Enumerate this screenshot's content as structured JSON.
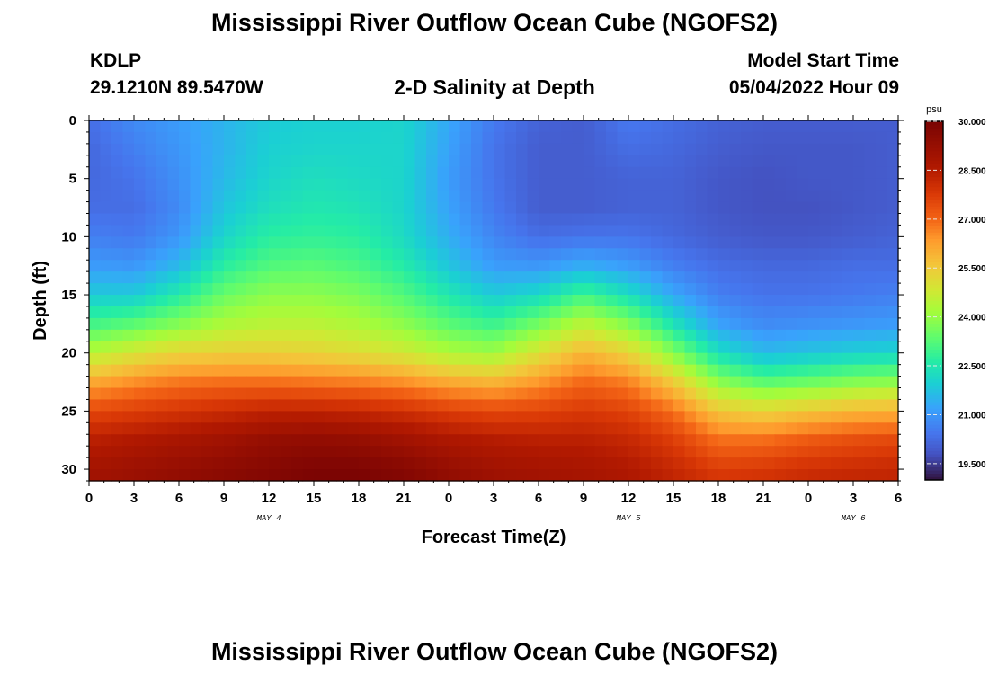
{
  "header": {
    "title": "Mississippi River Outflow Ocean Cube (NGOFS2)",
    "station_id": "KDLP",
    "station_coords": "29.1210N  89.5470W",
    "subtitle": "2-D Salinity at Depth",
    "model_start_label": "Model Start Time",
    "model_start_value": "05/04/2022 Hour 09"
  },
  "footer": {
    "title": "Mississippi River Outflow Ocean Cube (NGOFS2)"
  },
  "chart_data": {
    "type": "heatmap",
    "title": "2-D Salinity at Depth",
    "xlabel": "Forecast Time(Z)",
    "ylabel": "Depth (ft)",
    "x_tick_labels": [
      "0",
      "3",
      "6",
      "9",
      "12",
      "15",
      "18",
      "21",
      "0",
      "3",
      "6",
      "9",
      "12",
      "15",
      "18",
      "21",
      "0",
      "3",
      "6"
    ],
    "x_range_hours": [
      0,
      54
    ],
    "day_labels": [
      {
        "label": "MAY 4",
        "hour": 12
      },
      {
        "label": "MAY 5",
        "hour": 36
      },
      {
        "label": "MAY 6",
        "hour": 51
      }
    ],
    "y_ticks": [
      0,
      5,
      10,
      15,
      20,
      25,
      30
    ],
    "y_range_ft": [
      0,
      31
    ],
    "y_inverted": true,
    "colorbar": {
      "unit": "psu",
      "range": [
        19.0,
        30.0
      ],
      "tick_labels": [
        "30.000",
        "28.500",
        "27.000",
        "25.500",
        "24.000",
        "22.500",
        "21.000",
        "19.500"
      ],
      "tick_values": [
        30.0,
        28.5,
        27.0,
        25.5,
        24.0,
        22.5,
        21.0,
        19.5
      ],
      "colormap": "turbo"
    },
    "grid": false,
    "time_hours": [
      0,
      3,
      6,
      9,
      12,
      15,
      18,
      21,
      24,
      27,
      30,
      33,
      36,
      39,
      42,
      45,
      48,
      51,
      54
    ],
    "depth_ft": [
      0,
      2.5,
      5,
      7.5,
      10,
      12.5,
      15,
      17.5,
      20,
      22.5,
      25,
      27.5,
      30,
      31
    ],
    "salinity_psu": [
      [
        20.3,
        20.8,
        21.1,
        21.5,
        21.9,
        22.0,
        22.0,
        22.1,
        21.3,
        20.5,
        20.1,
        20.0,
        20.5,
        20.3,
        20.1,
        20.0,
        20.0,
        20.0,
        20.0
      ],
      [
        20.2,
        20.6,
        21.0,
        21.5,
        22.0,
        22.1,
        22.1,
        22.1,
        21.2,
        20.4,
        20.0,
        20.0,
        20.3,
        20.2,
        20.0,
        19.9,
        19.9,
        19.9,
        20.0
      ],
      [
        20.2,
        20.4,
        20.9,
        21.6,
        22.1,
        22.3,
        22.2,
        22.1,
        21.1,
        20.4,
        20.0,
        20.0,
        20.1,
        20.1,
        19.9,
        19.8,
        19.9,
        19.9,
        20.0
      ],
      [
        20.3,
        20.3,
        20.8,
        21.8,
        22.3,
        22.5,
        22.4,
        22.1,
        21.2,
        20.5,
        20.0,
        20.0,
        20.1,
        20.1,
        19.9,
        19.8,
        19.8,
        19.9,
        20.0
      ],
      [
        20.6,
        20.5,
        21.0,
        22.1,
        22.7,
        22.8,
        22.7,
        22.2,
        21.4,
        20.7,
        20.3,
        20.4,
        20.4,
        20.2,
        20.0,
        19.9,
        19.9,
        20.0,
        20.1
      ],
      [
        21.1,
        21.0,
        21.6,
        22.7,
        23.2,
        23.3,
        23.1,
        22.6,
        21.8,
        21.1,
        21.0,
        21.4,
        21.1,
        20.6,
        20.3,
        20.2,
        20.2,
        20.3,
        20.3
      ],
      [
        21.9,
        21.9,
        22.6,
        23.5,
        23.9,
        23.9,
        23.7,
        23.2,
        22.5,
        21.9,
        22.2,
        23.0,
        22.3,
        21.3,
        20.6,
        20.4,
        20.4,
        20.5,
        20.6
      ],
      [
        23.0,
        23.3,
        23.8,
        24.3,
        24.5,
        24.5,
        24.3,
        23.9,
        23.3,
        22.9,
        23.6,
        24.5,
        23.8,
        22.4,
        21.2,
        20.8,
        20.9,
        21.0,
        21.1
      ],
      [
        24.4,
        24.9,
        25.3,
        25.4,
        25.4,
        25.3,
        25.1,
        24.8,
        24.3,
        24.1,
        25.0,
        25.9,
        25.3,
        23.8,
        22.3,
        21.6,
        21.8,
        22.0,
        22.1
      ],
      [
        26.1,
        26.5,
        26.8,
        26.9,
        26.9,
        26.8,
        26.7,
        26.5,
        26.1,
        25.9,
        26.4,
        27.0,
        26.7,
        25.5,
        23.9,
        23.3,
        23.5,
        23.8,
        23.9
      ],
      [
        27.5,
        27.7,
        27.9,
        28.1,
        28.3,
        28.3,
        28.2,
        28.0,
        27.7,
        27.5,
        27.6,
        27.8,
        27.6,
        26.9,
        25.6,
        25.3,
        25.6,
        25.9,
        26.0
      ],
      [
        28.4,
        28.6,
        28.8,
        29.0,
        29.3,
        29.4,
        29.3,
        29.0,
        28.7,
        28.5,
        28.4,
        28.4,
        28.2,
        27.7,
        26.9,
        26.9,
        27.2,
        27.4,
        27.5
      ],
      [
        28.9,
        29.1,
        29.3,
        29.5,
        29.7,
        29.9,
        29.9,
        29.7,
        29.3,
        29.0,
        28.9,
        28.8,
        28.6,
        28.2,
        27.7,
        27.8,
        28.0,
        28.1,
        28.2
      ],
      [
        29.0,
        29.2,
        29.4,
        29.6,
        29.8,
        30.0,
        30.0,
        29.8,
        29.4,
        29.1,
        29.0,
        28.9,
        28.7,
        28.3,
        27.9,
        28.0,
        28.2,
        28.3,
        28.3
      ]
    ]
  }
}
